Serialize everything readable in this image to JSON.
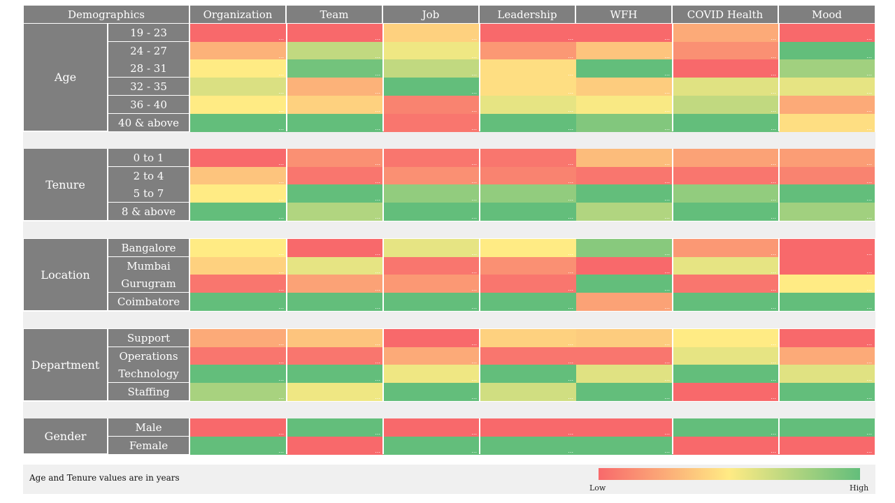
{
  "header": {
    "demographics_label": "Demographics",
    "columns": [
      "Organization",
      "Team",
      "Job",
      "Leadership",
      "WFH",
      "COVID Health",
      "Mood"
    ]
  },
  "chart_data": {
    "type": "heatmap",
    "value_scale": "relative score, 0 = Low (red) to 1 = High (green); values estimated from cell colour",
    "color_scale": {
      "low": "#f8696b",
      "mid": "#ffeb84",
      "high": "#63be7b"
    },
    "columns": [
      "Organization",
      "Team",
      "Job",
      "Leadership",
      "WFH",
      "COVID Health",
      "Mood"
    ],
    "groups": [
      {
        "name": "Age",
        "rows": [
          {
            "label": "19 - 23",
            "values": [
              0.0,
              0.0,
              0.4,
              0.0,
              0.0,
              0.25,
              0.0
            ]
          },
          {
            "label": "24 - 27",
            "values": [
              0.28,
              0.7,
              0.55,
              0.18,
              0.35,
              0.15,
              1.0
            ]
          },
          {
            "label": "28 - 31",
            "values": [
              0.5,
              0.95,
              0.7,
              0.45,
              1.0,
              0.0,
              0.8
            ]
          },
          {
            "label": "32 - 35",
            "values": [
              0.62,
              0.28,
              1.0,
              0.45,
              0.38,
              0.6,
              0.58
            ]
          },
          {
            "label": "36 - 40",
            "values": [
              0.5,
              0.4,
              0.1,
              0.58,
              0.52,
              0.7,
              0.25
            ]
          },
          {
            "label": "40 & above",
            "values": [
              1.0,
              1.0,
              0.05,
              1.0,
              0.9,
              1.0,
              0.45
            ]
          }
        ]
      },
      {
        "name": "Tenure",
        "rows": [
          {
            "label": "0 to 1",
            "values": [
              0.0,
              0.15,
              0.05,
              0.05,
              0.32,
              0.22,
              0.2
            ]
          },
          {
            "label": "2 to 4",
            "values": [
              0.35,
              0.05,
              0.15,
              0.1,
              0.05,
              0.05,
              0.1
            ]
          },
          {
            "label": "5 to 7",
            "values": [
              0.5,
              1.0,
              0.85,
              0.85,
              1.0,
              0.85,
              1.0
            ]
          },
          {
            "label": "8 & above",
            "values": [
              1.0,
              0.75,
              1.0,
              1.0,
              0.75,
              1.0,
              0.8
            ]
          }
        ]
      },
      {
        "name": "Location",
        "rows": [
          {
            "label": "Bangalore",
            "values": [
              0.5,
              0.0,
              0.58,
              0.5,
              0.88,
              0.18,
              0.0
            ]
          },
          {
            "label": "Mumbai",
            "values": [
              0.4,
              0.58,
              0.05,
              0.15,
              0.0,
              0.58,
              0.0
            ]
          },
          {
            "label": "Gurugram",
            "values": [
              0.05,
              0.22,
              0.18,
              0.05,
              1.0,
              0.05,
              0.5
            ]
          },
          {
            "label": "Coimbatore",
            "values": [
              1.0,
              1.0,
              1.0,
              1.0,
              0.22,
              1.0,
              1.0
            ]
          }
        ]
      },
      {
        "name": "Department",
        "rows": [
          {
            "label": "Support",
            "values": [
              0.25,
              0.35,
              0.0,
              0.4,
              0.38,
              0.5,
              0.0
            ]
          },
          {
            "label": "Operations",
            "values": [
              0.05,
              0.05,
              0.25,
              0.05,
              0.05,
              0.58,
              0.25
            ]
          },
          {
            "label": "Technology",
            "values": [
              1.0,
              1.0,
              0.55,
              1.0,
              0.6,
              1.0,
              0.6
            ]
          },
          {
            "label": "Staffing",
            "values": [
              0.78,
              0.55,
              1.0,
              0.65,
              1.0,
              0.0,
              1.0
            ]
          }
        ]
      },
      {
        "name": "Gender",
        "rows": [
          {
            "label": "Male",
            "values": [
              0.0,
              1.0,
              0.0,
              0.0,
              0.0,
              1.0,
              1.0
            ]
          },
          {
            "label": "Female",
            "values": [
              1.0,
              0.0,
              1.0,
              1.0,
              1.0,
              0.0,
              0.0
            ]
          }
        ]
      }
    ]
  },
  "footer": {
    "note": "Age and Tenure values are in years",
    "legend_low": "Low",
    "legend_high": "High"
  }
}
